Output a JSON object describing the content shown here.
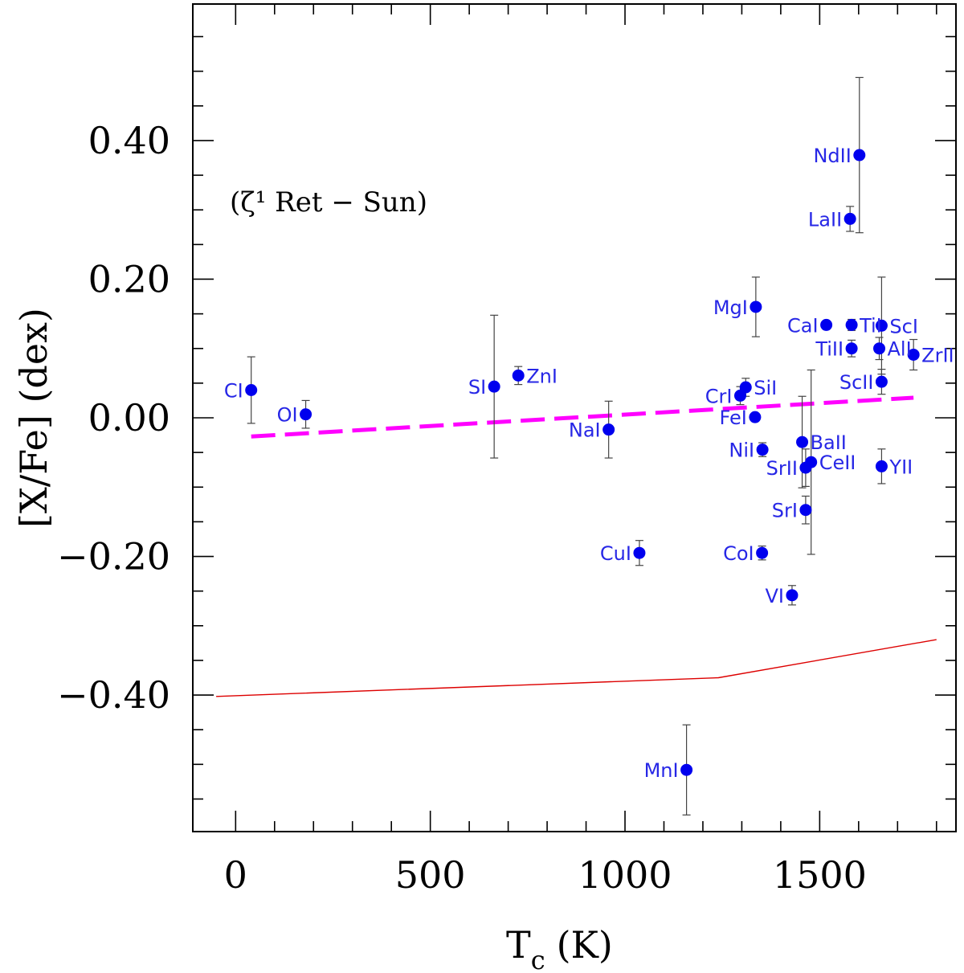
{
  "chart_data": {
    "type": "scatter",
    "title": "",
    "annotation": "(ζ¹ Ret − Sun)",
    "xlabel": "T",
    "xlabel_sub": "c",
    "xlabel_unit": "(K)",
    "ylabel": "[X/Fe] (dex)",
    "xlim": [
      -110,
      1850
    ],
    "ylim": [
      -0.597,
      0.597
    ],
    "xticks": [
      0,
      500,
      1000,
      1500
    ],
    "xtick_labels": [
      "0",
      "500",
      "1000",
      "1500"
    ],
    "yticks": [
      0.4,
      0.2,
      0.0,
      -0.2,
      -0.4
    ],
    "ytick_labels": [
      "0.40",
      "0.20",
      "0.00",
      "−0.20",
      "−0.40"
    ],
    "colors": {
      "points": "#0000ee",
      "labels": "#2727e6",
      "fit": "#ff00ff",
      "gce": "#dd0000",
      "errorbar": "#444444"
    },
    "points": [
      {
        "label": "CI",
        "x": 40,
        "y": 0.04,
        "err": 0.048,
        "side": "left",
        "dy": 0
      },
      {
        "label": "OI",
        "x": 180,
        "y": 0.005,
        "err": 0.02,
        "side": "left",
        "dy": 0
      },
      {
        "label": "SI",
        "x": 664,
        "y": 0.045,
        "err": 0.103,
        "side": "left",
        "dy": 0
      },
      {
        "label": "ZnI",
        "x": 726,
        "y": 0.061,
        "err": 0.013,
        "side": "right",
        "dy": 0
      },
      {
        "label": "NaI",
        "x": 958,
        "y": -0.017,
        "err": 0.041,
        "side": "left",
        "dy": 0
      },
      {
        "label": "CuI",
        "x": 1037,
        "y": -0.195,
        "err": 0.018,
        "side": "left",
        "dy": 0
      },
      {
        "label": "MnI",
        "x": 1158,
        "y": -0.508,
        "err": 0.065,
        "side": "left",
        "dy": 0
      },
      {
        "label": "CrI",
        "x": 1296,
        "y": 0.032,
        "err": 0.013,
        "side": "left",
        "dy": 0
      },
      {
        "label": "SiI",
        "x": 1310,
        "y": 0.044,
        "err": 0.013,
        "side": "right",
        "dy": 0
      },
      {
        "label": "MgI",
        "x": 1336,
        "y": 0.16,
        "err": 0.043,
        "side": "left",
        "dy": 0
      },
      {
        "label": "FeI",
        "x": 1334,
        "y": 0.001,
        "err": 0.0,
        "side": "left",
        "dy": 0
      },
      {
        "label": "NiI",
        "x": 1353,
        "y": -0.046,
        "err": 0.01,
        "side": "left",
        "dy": 0
      },
      {
        "label": "CoI",
        "x": 1352,
        "y": -0.195,
        "err": 0.01,
        "side": "left",
        "dy": 0
      },
      {
        "label": "VI",
        "x": 1429,
        "y": -0.256,
        "err": 0.014,
        "side": "left",
        "dy": 0
      },
      {
        "label": "BaII",
        "x": 1455,
        "y": -0.035,
        "err": 0.066,
        "side": "right",
        "dy": 0.0
      },
      {
        "label": "SrII",
        "x": 1464,
        "y": -0.072,
        "err": 0.027,
        "side": "left",
        "dy": 0
      },
      {
        "label": "CeII",
        "x": 1478,
        "y": -0.064,
        "err": 0.133,
        "side": "right",
        "dy": 0
      },
      {
        "label": "SrI",
        "x": 1464,
        "y": -0.133,
        "err": 0.02,
        "side": "left",
        "dy": 0
      },
      {
        "label": "CaI",
        "x": 1517,
        "y": 0.134,
        "err": 0.0,
        "side": "left",
        "dy": 0
      },
      {
        "label": "TiI",
        "x": 1582,
        "y": 0.134,
        "err": 0.008,
        "side": "right",
        "dy": 0
      },
      {
        "label": "TiII",
        "x": 1582,
        "y": 0.1,
        "err": 0.012,
        "side": "left",
        "dy": 0
      },
      {
        "label": "LaII",
        "x": 1578,
        "y": 0.287,
        "err": 0.018,
        "side": "left",
        "dy": 0
      },
      {
        "label": "NdII",
        "x": 1602,
        "y": 0.379,
        "err": 0.112,
        "side": "left",
        "dy": 0
      },
      {
        "label": "ScI",
        "x": 1659,
        "y": 0.133,
        "err": 0.07,
        "side": "right",
        "dy": 0
      },
      {
        "label": "AlI",
        "x": 1653,
        "y": 0.1,
        "err": 0.016,
        "side": "right",
        "dy": 0
      },
      {
        "label": "ScII",
        "x": 1659,
        "y": 0.052,
        "err": 0.018,
        "side": "left",
        "dy": 0
      },
      {
        "label": "YII",
        "x": 1659,
        "y": -0.07,
        "err": 0.025,
        "side": "right",
        "dy": 0
      },
      {
        "label": "ZrII",
        "x": 1741,
        "y": 0.091,
        "err": 0.022,
        "side": "right",
        "dy": 0
      }
    ],
    "fit_line": {
      "style": "dashed",
      "x": [
        40,
        1741
      ],
      "y": [
        -0.027,
        0.029
      ]
    },
    "gce_line": {
      "style": "solid",
      "x": [
        -50,
        1240,
        1800
      ],
      "y": [
        -0.402,
        -0.375,
        -0.32
      ]
    }
  }
}
